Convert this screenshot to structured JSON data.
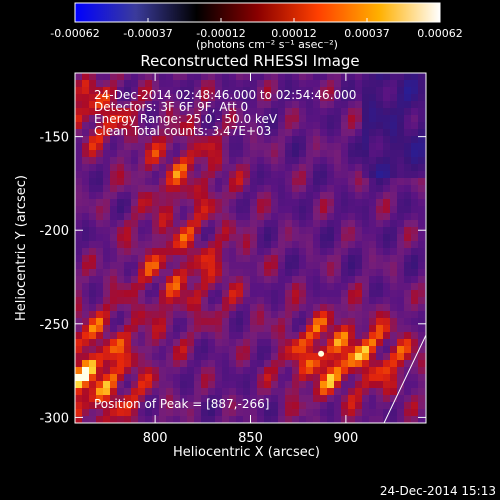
{
  "colorbar": {
    "ticks": [
      "-0.00062",
      "-0.00037",
      "-0.00012",
      "0.00012",
      "0.00037",
      "0.00062"
    ],
    "unit_label": "(photons cm⁻² s⁻¹ asec⁻²)",
    "gradient": [
      "#0000ff",
      "#3b3b9b",
      "#000000",
      "#8a0000",
      "#ff4000",
      "#ffb000",
      "#ffffff"
    ]
  },
  "chart_data": {
    "type": "heatmap",
    "title": "Reconstructed RHESSI Image",
    "xlabel": "Heliocentric X (arcsec)",
    "ylabel": "Heliocentric Y (arcsec)",
    "xlim": [
      758,
      942
    ],
    "ylim": [
      -303,
      -116
    ],
    "x_ticks": [
      800,
      850,
      900
    ],
    "y_ticks": [
      -150,
      -200,
      -250,
      -300
    ],
    "annotations": [
      "24-Dec-2014 02:48:46.000 to 02:54:46.000",
      "Detectors: 3F 6F 9F, Att 0",
      "Energy Range: 25.0 - 50.0 keV",
      "Clean     Total counts: 3.47E+03"
    ],
    "peak_label": "Position of Peak = [887,-266]",
    "peak": [
      887,
      -266
    ],
    "limb_segment": [
      [
        920,
        -303
      ],
      [
        942,
        -256
      ]
    ]
  },
  "footer": {
    "timestamp": "24-Dec-2014 15:13"
  }
}
